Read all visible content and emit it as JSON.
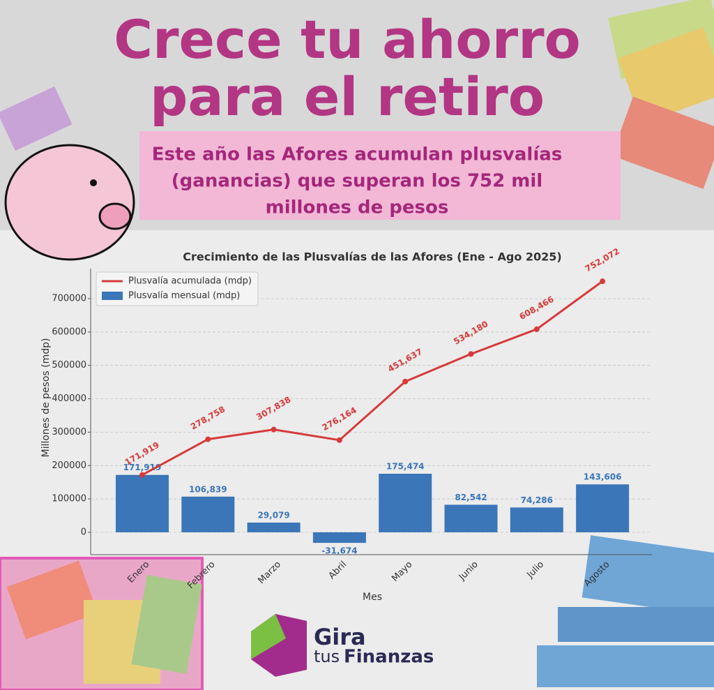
{
  "header": {
    "title_lines": [
      "Crece tu ahorro",
      "para el retiro"
    ],
    "subtitle_lines": [
      "Este año las Afores acumulan plusvalías",
      "(ganancias) que superan los 752 mil",
      "millones de pesos"
    ]
  },
  "chart_data": {
    "type": "bar-line",
    "title": "Crecimiento de las Plusvalías de las Afores (Ene - Ago 2025)",
    "xlabel": "Mes",
    "ylabel": "Millones de pesos (mdp)",
    "categories": [
      "Enero",
      "Febrero",
      "Marzo",
      "Abril",
      "Mayo",
      "Junio",
      "Julio",
      "Agosto"
    ],
    "series": [
      {
        "name": "Plusvalía acumulada (mdp)",
        "type": "line",
        "color": "#d63a3a",
        "values": [
          171919,
          278758,
          307838,
          276164,
          451637,
          534180,
          608466,
          752072
        ],
        "value_labels": [
          "171,919",
          "278,758",
          "307,838",
          "276,164",
          "451,637",
          "534,180",
          "608,466",
          "752,072"
        ]
      },
      {
        "name": "Plusvalía mensual (mdp)",
        "type": "bar",
        "color": "#3b76b8",
        "values": [
          171919,
          106839,
          29079,
          -31674,
          175474,
          82542,
          74286,
          143606
        ],
        "value_labels": [
          "171,919",
          "106,839",
          "29,079",
          "-31,674",
          "175,474",
          "82,542",
          "74,286",
          "143,606"
        ]
      }
    ],
    "ylim": [
      -67000,
      790000
    ],
    "yticks": [
      0,
      100000,
      200000,
      300000,
      400000,
      500000,
      600000,
      700000
    ],
    "grid": true,
    "legend": "upper-left"
  },
  "logo": {
    "line1": "Gira",
    "line2a": "tus",
    "line2b": "Finanzas"
  }
}
